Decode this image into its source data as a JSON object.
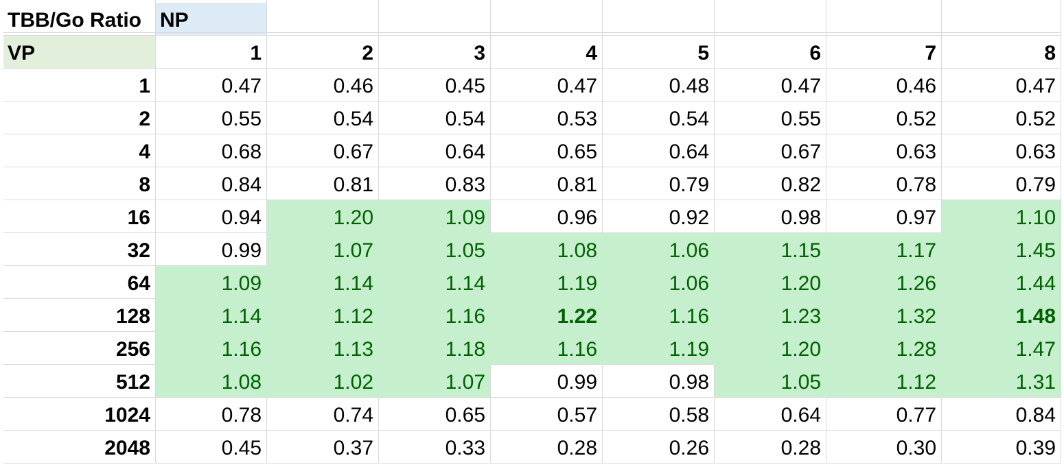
{
  "sheet": {
    "corner_label": "TBB/Go Ratio",
    "col_header_label": "NP",
    "row_header_label": "VP",
    "np_values": [
      "1",
      "2",
      "3",
      "4",
      "5",
      "6",
      "7",
      "8"
    ],
    "colors": {
      "highlight_fill": "#c6efce",
      "highlight_text": "#006100",
      "np_header_fill": "#ddebf7",
      "vp_header_fill": "#e2efda",
      "gridline": "#d9d9d9"
    },
    "rows": [
      {
        "vp": "1",
        "values": [
          "0.47",
          "0.46",
          "0.45",
          "0.47",
          "0.48",
          "0.47",
          "0.46",
          "0.47"
        ],
        "highlight": [
          0,
          0,
          0,
          0,
          0,
          0,
          0,
          0
        ],
        "bold": [
          0,
          0,
          0,
          0,
          0,
          0,
          0,
          0
        ]
      },
      {
        "vp": "2",
        "values": [
          "0.55",
          "0.54",
          "0.54",
          "0.53",
          "0.54",
          "0.55",
          "0.52",
          "0.52"
        ],
        "highlight": [
          0,
          0,
          0,
          0,
          0,
          0,
          0,
          0
        ],
        "bold": [
          0,
          0,
          0,
          0,
          0,
          0,
          0,
          0
        ]
      },
      {
        "vp": "4",
        "values": [
          "0.68",
          "0.67",
          "0.64",
          "0.65",
          "0.64",
          "0.67",
          "0.63",
          "0.63"
        ],
        "highlight": [
          0,
          0,
          0,
          0,
          0,
          0,
          0,
          0
        ],
        "bold": [
          0,
          0,
          0,
          0,
          0,
          0,
          0,
          0
        ]
      },
      {
        "vp": "8",
        "values": [
          "0.84",
          "0.81",
          "0.83",
          "0.81",
          "0.79",
          "0.82",
          "0.78",
          "0.79"
        ],
        "highlight": [
          0,
          0,
          0,
          0,
          0,
          0,
          0,
          0
        ],
        "bold": [
          0,
          0,
          0,
          0,
          0,
          0,
          0,
          0
        ]
      },
      {
        "vp": "16",
        "values": [
          "0.94",
          "1.20",
          "1.09",
          "0.96",
          "0.92",
          "0.98",
          "0.97",
          "1.10"
        ],
        "highlight": [
          0,
          1,
          1,
          0,
          0,
          0,
          0,
          1
        ],
        "bold": [
          0,
          0,
          0,
          0,
          0,
          0,
          0,
          0
        ]
      },
      {
        "vp": "32",
        "values": [
          "0.99",
          "1.07",
          "1.05",
          "1.08",
          "1.06",
          "1.15",
          "1.17",
          "1.45"
        ],
        "highlight": [
          0,
          1,
          1,
          1,
          1,
          1,
          1,
          1
        ],
        "bold": [
          0,
          0,
          0,
          0,
          0,
          0,
          0,
          0
        ]
      },
      {
        "vp": "64",
        "values": [
          "1.09",
          "1.14",
          "1.14",
          "1.19",
          "1.06",
          "1.20",
          "1.26",
          "1.44"
        ],
        "highlight": [
          1,
          1,
          1,
          1,
          1,
          1,
          1,
          1
        ],
        "bold": [
          0,
          0,
          0,
          0,
          0,
          0,
          0,
          0
        ]
      },
      {
        "vp": "128",
        "values": [
          "1.14",
          "1.12",
          "1.16",
          "1.22",
          "1.16",
          "1.23",
          "1.32",
          "1.48"
        ],
        "highlight": [
          1,
          1,
          1,
          1,
          1,
          1,
          1,
          1
        ],
        "bold": [
          0,
          0,
          0,
          1,
          0,
          0,
          0,
          1
        ]
      },
      {
        "vp": "256",
        "values": [
          "1.16",
          "1.13",
          "1.18",
          "1.16",
          "1.19",
          "1.20",
          "1.28",
          "1.47"
        ],
        "highlight": [
          1,
          1,
          1,
          1,
          1,
          1,
          1,
          1
        ],
        "bold": [
          0,
          0,
          0,
          0,
          0,
          0,
          0,
          0
        ]
      },
      {
        "vp": "512",
        "values": [
          "1.08",
          "1.02",
          "1.07",
          "0.99",
          "0.98",
          "1.05",
          "1.12",
          "1.31"
        ],
        "highlight": [
          1,
          1,
          1,
          0,
          0,
          1,
          1,
          1
        ],
        "bold": [
          0,
          0,
          0,
          0,
          0,
          0,
          0,
          0
        ]
      },
      {
        "vp": "1024",
        "values": [
          "0.78",
          "0.74",
          "0.65",
          "0.57",
          "0.58",
          "0.64",
          "0.77",
          "0.84"
        ],
        "highlight": [
          0,
          0,
          0,
          0,
          0,
          0,
          0,
          0
        ],
        "bold": [
          0,
          0,
          0,
          0,
          0,
          0,
          0,
          0
        ]
      },
      {
        "vp": "2048",
        "values": [
          "0.45",
          "0.37",
          "0.33",
          "0.28",
          "0.26",
          "0.28",
          "0.30",
          "0.39"
        ],
        "highlight": [
          0,
          0,
          0,
          0,
          0,
          0,
          0,
          0
        ],
        "bold": [
          0,
          0,
          0,
          0,
          0,
          0,
          0,
          0
        ]
      }
    ]
  }
}
